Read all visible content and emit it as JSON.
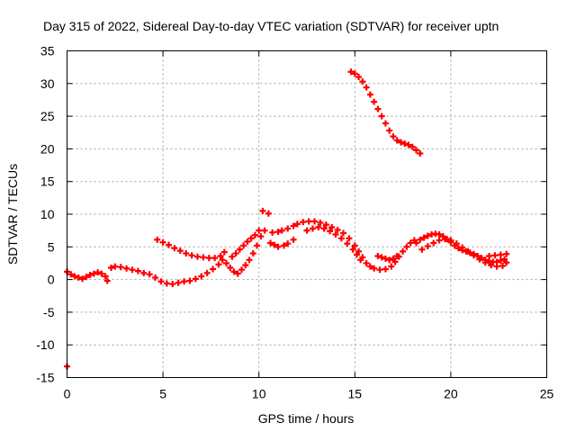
{
  "chart_data": {
    "type": "scatter",
    "title": "Day 315 of 2022, Sidereal Day-to-day VTEC variation (SDTVAR) for receiver uptn",
    "xlabel": "GPS time / hours",
    "ylabel": "SDTVAR / TECUs",
    "xlim": [
      0,
      25
    ],
    "ylim": [
      -15,
      35
    ],
    "xticks": [
      0,
      5,
      10,
      15,
      20,
      25
    ],
    "yticks": [
      -15,
      -10,
      -5,
      0,
      5,
      10,
      15,
      20,
      25,
      30,
      35
    ],
    "grid": true,
    "marker": "plus",
    "series_color": "#ff0000",
    "series": [
      {
        "name": "SDTVAR",
        "points": [
          [
            0.0,
            -13.3
          ],
          [
            0.0,
            1.2
          ],
          [
            0.2,
            0.8
          ],
          [
            0.4,
            0.5
          ],
          [
            0.6,
            0.3
          ],
          [
            0.8,
            0.1
          ],
          [
            1.0,
            0.4
          ],
          [
            1.2,
            0.7
          ],
          [
            1.4,
            0.9
          ],
          [
            1.6,
            1.1
          ],
          [
            1.8,
            0.9
          ],
          [
            2.0,
            0.5
          ],
          [
            2.1,
            -0.2
          ],
          [
            2.3,
            1.8
          ],
          [
            2.5,
            2.0
          ],
          [
            2.8,
            1.9
          ],
          [
            3.1,
            1.7
          ],
          [
            3.4,
            1.5
          ],
          [
            3.7,
            1.3
          ],
          [
            4.0,
            1.0
          ],
          [
            4.3,
            0.8
          ],
          [
            4.6,
            0.3
          ],
          [
            4.9,
            -0.3
          ],
          [
            5.2,
            -0.6
          ],
          [
            5.5,
            -0.7
          ],
          [
            5.8,
            -0.5
          ],
          [
            6.1,
            -0.3
          ],
          [
            6.4,
            -0.2
          ],
          [
            6.7,
            0.1
          ],
          [
            7.0,
            0.5
          ],
          [
            7.3,
            1.0
          ],
          [
            7.6,
            1.6
          ],
          [
            7.9,
            2.3
          ],
          [
            8.1,
            3.0
          ],
          [
            4.7,
            6.1
          ],
          [
            5.0,
            5.7
          ],
          [
            5.3,
            5.3
          ],
          [
            5.6,
            4.8
          ],
          [
            5.9,
            4.4
          ],
          [
            6.2,
            4.0
          ],
          [
            6.5,
            3.7
          ],
          [
            6.8,
            3.5
          ],
          [
            7.1,
            3.4
          ],
          [
            7.4,
            3.3
          ],
          [
            7.7,
            3.3
          ],
          [
            8.0,
            3.6
          ],
          [
            8.2,
            4.2
          ],
          [
            8.3,
            2.5
          ],
          [
            8.5,
            1.8
          ],
          [
            8.7,
            1.2
          ],
          [
            8.9,
            0.9
          ],
          [
            9.1,
            1.5
          ],
          [
            9.3,
            2.2
          ],
          [
            9.5,
            3.0
          ],
          [
            9.7,
            4.0
          ],
          [
            9.9,
            5.2
          ],
          [
            10.1,
            6.6
          ],
          [
            10.3,
            7.5
          ],
          [
            8.6,
            3.5
          ],
          [
            8.8,
            4.0
          ],
          [
            9.0,
            4.6
          ],
          [
            9.2,
            5.2
          ],
          [
            9.4,
            5.8
          ],
          [
            9.6,
            6.3
          ],
          [
            9.8,
            6.8
          ],
          [
            10.0,
            7.5
          ],
          [
            10.2,
            10.5
          ],
          [
            10.5,
            10.1
          ],
          [
            10.6,
            5.6
          ],
          [
            10.8,
            5.3
          ],
          [
            11.0,
            5.0
          ],
          [
            11.3,
            5.2
          ],
          [
            11.5,
            5.5
          ],
          [
            11.8,
            6.1
          ],
          [
            10.7,
            7.2
          ],
          [
            11.0,
            7.3
          ],
          [
            11.2,
            7.5
          ],
          [
            11.5,
            7.8
          ],
          [
            11.8,
            8.2
          ],
          [
            12.0,
            8.5
          ],
          [
            12.3,
            8.8
          ],
          [
            12.6,
            8.9
          ],
          [
            12.9,
            8.9
          ],
          [
            13.2,
            8.7
          ],
          [
            13.5,
            8.4
          ],
          [
            13.8,
            8.0
          ],
          [
            14.1,
            7.6
          ],
          [
            14.4,
            7.1
          ],
          [
            14.7,
            6.3
          ],
          [
            15.0,
            5.2
          ],
          [
            15.2,
            4.3
          ],
          [
            15.4,
            3.4
          ],
          [
            15.6,
            2.5
          ],
          [
            15.8,
            2.0
          ],
          [
            16.0,
            1.7
          ],
          [
            16.3,
            1.5
          ],
          [
            16.6,
            1.6
          ],
          [
            16.9,
            2.0
          ],
          [
            17.1,
            2.7
          ],
          [
            17.3,
            3.5
          ],
          [
            17.5,
            4.3
          ],
          [
            17.7,
            5.0
          ],
          [
            17.9,
            5.6
          ],
          [
            18.1,
            6.0
          ],
          [
            12.5,
            7.5
          ],
          [
            12.8,
            7.8
          ],
          [
            13.1,
            8.0
          ],
          [
            13.4,
            7.8
          ],
          [
            13.7,
            7.4
          ],
          [
            14.0,
            6.9
          ],
          [
            14.3,
            6.3
          ],
          [
            14.6,
            5.5
          ],
          [
            14.9,
            4.6
          ],
          [
            15.1,
            3.8
          ],
          [
            15.3,
            3.0
          ],
          [
            14.8,
            31.8
          ],
          [
            15.0,
            31.5
          ],
          [
            15.2,
            31.0
          ],
          [
            15.4,
            30.3
          ],
          [
            15.6,
            29.4
          ],
          [
            15.8,
            28.3
          ],
          [
            16.0,
            27.2
          ],
          [
            16.2,
            26.1
          ],
          [
            16.4,
            25.0
          ],
          [
            16.6,
            23.9
          ],
          [
            16.8,
            22.8
          ],
          [
            17.0,
            21.9
          ],
          [
            17.2,
            21.3
          ],
          [
            17.4,
            21.0
          ],
          [
            17.6,
            20.8
          ],
          [
            17.8,
            20.6
          ],
          [
            18.0,
            20.3
          ],
          [
            18.2,
            19.8
          ],
          [
            18.4,
            19.3
          ],
          [
            16.2,
            3.6
          ],
          [
            16.4,
            3.4
          ],
          [
            16.6,
            3.2
          ],
          [
            16.8,
            3.0
          ],
          [
            17.0,
            3.2
          ],
          [
            17.2,
            3.6
          ],
          [
            18.2,
            5.6
          ],
          [
            18.4,
            6.1
          ],
          [
            18.6,
            6.4
          ],
          [
            18.8,
            6.7
          ],
          [
            19.0,
            6.9
          ],
          [
            19.2,
            7.0
          ],
          [
            19.4,
            6.9
          ],
          [
            19.6,
            6.6
          ],
          [
            19.8,
            6.2
          ],
          [
            20.0,
            5.7
          ],
          [
            20.2,
            5.2
          ],
          [
            20.4,
            4.8
          ],
          [
            20.6,
            4.5
          ],
          [
            20.8,
            4.3
          ],
          [
            21.0,
            4.1
          ],
          [
            21.2,
            3.9
          ],
          [
            21.4,
            3.6
          ],
          [
            21.6,
            3.3
          ],
          [
            21.8,
            3.0
          ],
          [
            22.0,
            2.8
          ],
          [
            22.2,
            2.7
          ],
          [
            22.4,
            2.7
          ],
          [
            22.6,
            2.9
          ],
          [
            22.8,
            3.1
          ],
          [
            18.5,
            4.6
          ],
          [
            18.8,
            5.1
          ],
          [
            19.1,
            5.6
          ],
          [
            19.4,
            6.0
          ],
          [
            19.7,
            6.2
          ],
          [
            20.0,
            6.0
          ],
          [
            20.3,
            5.5
          ],
          [
            20.6,
            4.9
          ],
          [
            20.9,
            4.3
          ],
          [
            21.2,
            3.7
          ],
          [
            21.5,
            3.1
          ],
          [
            21.8,
            2.6
          ],
          [
            22.1,
            2.2
          ],
          [
            22.4,
            2.0
          ],
          [
            22.7,
            2.1
          ],
          [
            22.9,
            2.6
          ],
          [
            22.0,
            3.6
          ],
          [
            22.3,
            3.7
          ],
          [
            22.6,
            3.8
          ],
          [
            22.9,
            3.9
          ]
        ]
      }
    ]
  }
}
